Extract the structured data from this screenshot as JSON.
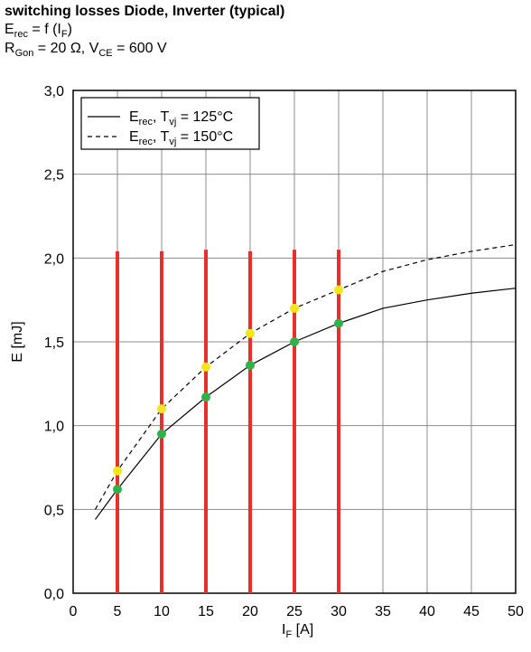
{
  "chart_data": {
    "type": "line",
    "title": "switching losses  Diode, Inverter (typical)",
    "subtitle": [
      "E",
      "rec",
      " = f (I",
      "F",
      ")"
    ],
    "conditions": [
      "R",
      "Gon",
      " = 20 Ω, V",
      "CE",
      " = 600 V"
    ],
    "x_label": [
      "I",
      "F",
      " [A]"
    ],
    "y_label": "E [mJ]",
    "xlim": [
      0,
      50
    ],
    "ylim": [
      0,
      3
    ],
    "xticks": [
      0,
      5,
      10,
      15,
      20,
      25,
      30,
      35,
      40,
      45,
      50
    ],
    "yticks": [
      {
        "value": 0,
        "label": "0,0"
      },
      {
        "value": 0.5,
        "label": "0,5"
      },
      {
        "value": 1,
        "label": "1,0"
      },
      {
        "value": 1.5,
        "label": "1,5"
      },
      {
        "value": 2,
        "label": "2,0"
      },
      {
        "value": 2.5,
        "label": "2,5"
      },
      {
        "value": 3,
        "label": "3,0"
      }
    ],
    "grid": true,
    "legend": "top-left",
    "series": [
      {
        "name": [
          "E",
          "rec",
          ", T",
          "vj",
          " = 125°C"
        ],
        "color": "#000000",
        "dash": false,
        "x": [
          2.5,
          5,
          10,
          15,
          20,
          25,
          30,
          35,
          40,
          45,
          50
        ],
        "values": [
          0.44,
          0.62,
          0.95,
          1.17,
          1.36,
          1.5,
          1.61,
          1.7,
          1.75,
          1.79,
          1.82
        ]
      },
      {
        "name": [
          "E",
          "rec",
          ", T",
          "vj",
          " = 150°C"
        ],
        "color": "#000000",
        "dash": true,
        "x": [
          2.5,
          5,
          10,
          15,
          20,
          25,
          30,
          35,
          40,
          45,
          50
        ],
        "values": [
          0.5,
          0.73,
          1.1,
          1.35,
          1.55,
          1.7,
          1.81,
          1.92,
          1.99,
          2.04,
          2.08
        ]
      }
    ],
    "vlines": {
      "color": "#e8302b",
      "x": [
        5,
        10,
        15,
        20,
        25,
        30
      ],
      "top": [
        2.04,
        2.04,
        2.05,
        2.04,
        2.05,
        2.05
      ]
    },
    "points": [
      {
        "color": "#2eb24a",
        "x": [
          5,
          10,
          15,
          20,
          25,
          30
        ],
        "values": [
          0.62,
          0.95,
          1.17,
          1.36,
          1.5,
          1.61
        ]
      },
      {
        "color": "#f5e51c",
        "x": [
          5,
          10,
          15,
          20,
          25,
          30
        ],
        "values": [
          0.73,
          1.1,
          1.35,
          1.55,
          1.7,
          1.81
        ]
      }
    ]
  }
}
